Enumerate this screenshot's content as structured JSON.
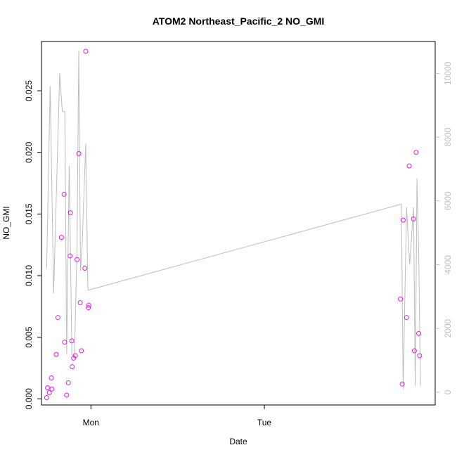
{
  "chart_data": {
    "type": "scatter",
    "title": "ATOM2 Northeast_Pacific_2 NO_GMI",
    "xlabel": "Date",
    "ylabel": "NO_GMI",
    "x_ticks": [
      {
        "label": "Mon",
        "value": 0
      },
      {
        "label": "Tue",
        "value": 1
      }
    ],
    "x_range": [
      -0.285,
      1.985
    ],
    "y_range": [
      -0.0005,
      0.029
    ],
    "y_ticks": [
      0.0,
      0.005,
      0.01,
      0.015,
      0.02,
      0.025
    ],
    "y_tick_labels": [
      "0.000",
      "0.005",
      "0.010",
      "0.015",
      "0.020",
      "0.025"
    ],
    "y2_range": [
      -400,
      11000
    ],
    "y2_ticks": [
      0,
      2000,
      4000,
      6000,
      8000,
      10000
    ],
    "y2_tick_labels": [
      "0",
      "2000",
      "4000",
      "6000",
      "8000",
      "10000"
    ],
    "point_color": "#e619e6",
    "line_color": "#bdbdbd",
    "series": [
      {
        "values": [
          [
            -0.255,
            0.0001
          ],
          [
            -0.25,
            0.0009
          ],
          [
            -0.24,
            0.0005
          ],
          [
            -0.228,
            0.0017
          ],
          [
            -0.225,
            0.0008
          ],
          [
            -0.2,
            0.0036
          ],
          [
            -0.19,
            0.0066
          ],
          [
            -0.17,
            0.0131
          ],
          [
            -0.155,
            0.0166
          ],
          [
            -0.152,
            0.0046
          ],
          [
            -0.14,
            0.0003
          ],
          [
            -0.13,
            0.0013
          ],
          [
            -0.12,
            0.0116
          ],
          [
            -0.118,
            0.0151
          ],
          [
            -0.11,
            0.0047
          ],
          [
            -0.108,
            0.0026
          ],
          [
            -0.1,
            0.0033
          ],
          [
            -0.09,
            0.0035
          ],
          [
            -0.08,
            0.0113
          ],
          [
            -0.07,
            0.0199
          ],
          [
            -0.062,
            0.0078
          ],
          [
            -0.055,
            0.0039
          ],
          [
            -0.035,
            0.0106
          ],
          [
            -0.03,
            0.0282
          ],
          [
            -0.015,
            0.0074
          ],
          [
            -0.012,
            0.0076
          ],
          [
            1.785,
            0.0081
          ],
          [
            1.795,
            0.0012
          ],
          [
            1.8,
            0.0145
          ],
          [
            1.82,
            0.0066
          ],
          [
            1.835,
            0.0189
          ],
          [
            1.86,
            0.0146
          ],
          [
            1.865,
            0.0039
          ],
          [
            1.875,
            0.02
          ],
          [
            1.89,
            0.0053
          ],
          [
            1.895,
            0.0035
          ]
        ]
      },
      {
        "values": [
          [
            -0.255,
            3900
          ],
          [
            -0.235,
            9600
          ],
          [
            -0.215,
            3100
          ],
          [
            -0.18,
            10000
          ],
          [
            -0.165,
            8800
          ],
          [
            -0.15,
            8800
          ],
          [
            -0.14,
            1200
          ],
          [
            -0.125,
            7100
          ],
          [
            -0.11,
            1200
          ],
          [
            -0.095,
            1100
          ],
          [
            -0.08,
            4600
          ],
          [
            -0.07,
            10700
          ],
          [
            -0.06,
            3800
          ],
          [
            -0.05,
            4700
          ],
          [
            -0.03,
            7800
          ],
          [
            -0.018,
            3300
          ],
          [
            -0.015,
            3200
          ],
          [
            1.79,
            5900
          ],
          [
            1.8,
            100
          ],
          [
            1.82,
            5800
          ],
          [
            1.838,
            4000
          ],
          [
            1.86,
            5800
          ],
          [
            1.87,
            200
          ],
          [
            1.88,
            6700
          ],
          [
            1.89,
            4300
          ],
          [
            1.9,
            200
          ]
        ]
      }
    ]
  }
}
